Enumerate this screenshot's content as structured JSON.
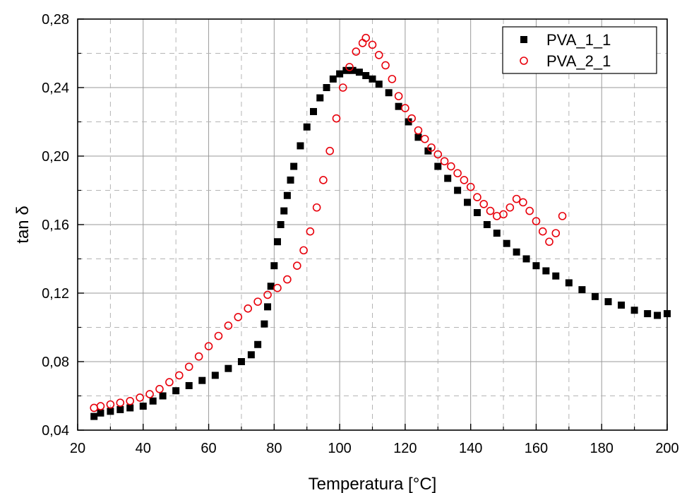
{
  "chart_data": {
    "type": "scatter",
    "title": "",
    "xlabel": "Temperatura [°C]",
    "ylabel": "tan δ",
    "xlim": [
      20,
      200
    ],
    "ylim": [
      0.04,
      0.28
    ],
    "x_ticks": [
      "20",
      "40",
      "60",
      "80",
      "100",
      "120",
      "140",
      "160",
      "180",
      "200"
    ],
    "y_ticks": [
      "0,04",
      "0,08",
      "0,12",
      "0,16",
      "0,20",
      "0,24",
      "0,28"
    ],
    "grid": true,
    "legend_position": "top-right",
    "series": [
      {
        "name": "PVA_1_1",
        "marker": "filled-square",
        "color": "#000000",
        "points": [
          [
            25,
            0.048
          ],
          [
            27,
            0.05
          ],
          [
            30,
            0.051
          ],
          [
            33,
            0.052
          ],
          [
            36,
            0.053
          ],
          [
            40,
            0.054
          ],
          [
            43,
            0.057
          ],
          [
            46,
            0.06
          ],
          [
            50,
            0.063
          ],
          [
            54,
            0.066
          ],
          [
            58,
            0.069
          ],
          [
            62,
            0.072
          ],
          [
            66,
            0.076
          ],
          [
            70,
            0.08
          ],
          [
            73,
            0.084
          ],
          [
            75,
            0.09
          ],
          [
            77,
            0.102
          ],
          [
            78,
            0.112
          ],
          [
            79,
            0.124
          ],
          [
            80,
            0.136
          ],
          [
            81,
            0.15
          ],
          [
            82,
            0.16
          ],
          [
            83,
            0.168
          ],
          [
            84,
            0.177
          ],
          [
            85,
            0.186
          ],
          [
            86,
            0.194
          ],
          [
            88,
            0.206
          ],
          [
            90,
            0.217
          ],
          [
            92,
            0.226
          ],
          [
            94,
            0.234
          ],
          [
            96,
            0.24
          ],
          [
            98,
            0.245
          ],
          [
            100,
            0.248
          ],
          [
            102,
            0.25
          ],
          [
            104,
            0.25
          ],
          [
            106,
            0.249
          ],
          [
            108,
            0.247
          ],
          [
            110,
            0.245
          ],
          [
            112,
            0.242
          ],
          [
            115,
            0.237
          ],
          [
            118,
            0.229
          ],
          [
            121,
            0.22
          ],
          [
            124,
            0.211
          ],
          [
            127,
            0.203
          ],
          [
            130,
            0.194
          ],
          [
            133,
            0.187
          ],
          [
            136,
            0.18
          ],
          [
            139,
            0.173
          ],
          [
            142,
            0.167
          ],
          [
            145,
            0.16
          ],
          [
            148,
            0.155
          ],
          [
            151,
            0.149
          ],
          [
            154,
            0.144
          ],
          [
            157,
            0.14
          ],
          [
            160,
            0.136
          ],
          [
            163,
            0.133
          ],
          [
            166,
            0.13
          ],
          [
            170,
            0.126
          ],
          [
            174,
            0.122
          ],
          [
            178,
            0.118
          ],
          [
            182,
            0.115
          ],
          [
            186,
            0.113
          ],
          [
            190,
            0.11
          ],
          [
            194,
            0.108
          ],
          [
            197,
            0.107
          ],
          [
            200,
            0.108
          ]
        ]
      },
      {
        "name": "PVA_2_1",
        "marker": "open-circle",
        "color": "#e8000b",
        "points": [
          [
            25,
            0.053
          ],
          [
            27,
            0.054
          ],
          [
            30,
            0.055
          ],
          [
            33,
            0.056
          ],
          [
            36,
            0.057
          ],
          [
            39,
            0.059
          ],
          [
            42,
            0.061
          ],
          [
            45,
            0.064
          ],
          [
            48,
            0.068
          ],
          [
            51,
            0.072
          ],
          [
            54,
            0.077
          ],
          [
            57,
            0.083
          ],
          [
            60,
            0.089
          ],
          [
            63,
            0.095
          ],
          [
            66,
            0.101
          ],
          [
            69,
            0.106
          ],
          [
            72,
            0.111
          ],
          [
            75,
            0.115
          ],
          [
            78,
            0.119
          ],
          [
            81,
            0.123
          ],
          [
            84,
            0.128
          ],
          [
            87,
            0.136
          ],
          [
            89,
            0.145
          ],
          [
            91,
            0.156
          ],
          [
            93,
            0.17
          ],
          [
            95,
            0.186
          ],
          [
            97,
            0.203
          ],
          [
            99,
            0.222
          ],
          [
            101,
            0.24
          ],
          [
            103,
            0.252
          ],
          [
            105,
            0.261
          ],
          [
            107,
            0.266
          ],
          [
            108,
            0.269
          ],
          [
            110,
            0.265
          ],
          [
            112,
            0.259
          ],
          [
            114,
            0.253
          ],
          [
            116,
            0.245
          ],
          [
            118,
            0.235
          ],
          [
            120,
            0.228
          ],
          [
            122,
            0.222
          ],
          [
            124,
            0.215
          ],
          [
            126,
            0.21
          ],
          [
            128,
            0.205
          ],
          [
            130,
            0.201
          ],
          [
            132,
            0.197
          ],
          [
            134,
            0.194
          ],
          [
            136,
            0.19
          ],
          [
            138,
            0.186
          ],
          [
            140,
            0.182
          ],
          [
            142,
            0.176
          ],
          [
            144,
            0.172
          ],
          [
            146,
            0.168
          ],
          [
            148,
            0.165
          ],
          [
            150,
            0.166
          ],
          [
            152,
            0.17
          ],
          [
            154,
            0.175
          ],
          [
            156,
            0.173
          ],
          [
            158,
            0.168
          ],
          [
            160,
            0.162
          ],
          [
            162,
            0.156
          ],
          [
            164,
            0.15
          ],
          [
            166,
            0.155
          ],
          [
            168,
            0.165
          ]
        ]
      }
    ]
  }
}
